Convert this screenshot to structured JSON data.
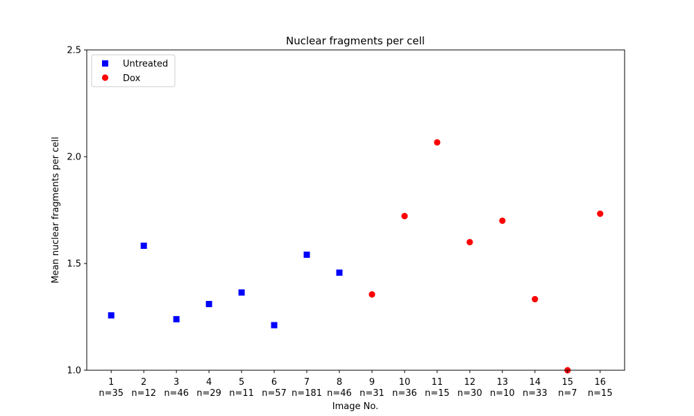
{
  "chart_data": {
    "type": "scatter",
    "title": "Nuclear fragments per cell",
    "xlabel": "Image No.",
    "ylabel": "Mean nuclear fragments per cell",
    "xlim": [
      0.25,
      16.75
    ],
    "ylim": [
      1.0,
      2.5
    ],
    "yticks": [
      "1.0",
      "1.5",
      "2.0",
      "2.5"
    ],
    "categories": [
      "1",
      "2",
      "3",
      "4",
      "5",
      "6",
      "7",
      "8",
      "9",
      "10",
      "11",
      "12",
      "13",
      "14",
      "15",
      "16"
    ],
    "n_labels": [
      "n=35",
      "n=12",
      "n=46",
      "n=29",
      "n=11",
      "n=57",
      "n=181",
      "n=46",
      "n=31",
      "n=36",
      "n=15",
      "n=30",
      "n=10",
      "n=33",
      "n=7",
      "n=15"
    ],
    "grid": false,
    "legend_position": "upper-left",
    "series": [
      {
        "name": "Untreated",
        "marker": "square",
        "color": "#0000ff",
        "x": [
          1,
          2,
          3,
          4,
          5,
          6,
          7,
          8
        ],
        "y": [
          1.257,
          1.583,
          1.239,
          1.31,
          1.364,
          1.211,
          1.541,
          1.457
        ]
      },
      {
        "name": "Dox",
        "marker": "circle",
        "color": "#ff0000",
        "x": [
          9,
          10,
          11,
          12,
          13,
          14,
          15,
          16
        ],
        "y": [
          1.355,
          1.722,
          2.067,
          1.6,
          1.7,
          1.333,
          1.0,
          1.733
        ]
      }
    ]
  }
}
